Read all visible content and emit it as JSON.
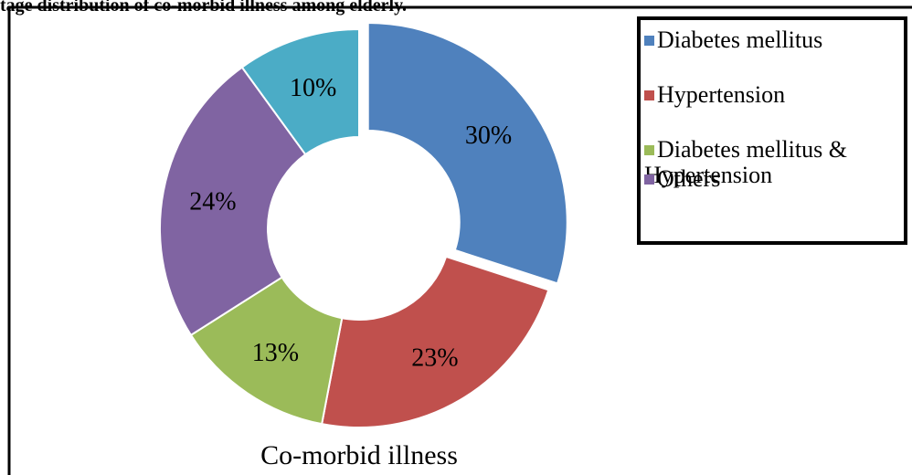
{
  "chart_data": {
    "type": "donut",
    "title": "tage distribution of co-morbid illness among elderly.",
    "subtitle": "Co-morbid illness",
    "categories": [
      "Diabetes mellitus",
      "Hypertension",
      "Diabetes mellitus & Hypertension",
      "Others",
      null
    ],
    "values": [
      30,
      23,
      13,
      24,
      10
    ],
    "value_labels": [
      "30%",
      "23%",
      "13%",
      "24%",
      "10%"
    ],
    "colors": [
      "#4f81bd",
      "#c0504d",
      "#9bbb59",
      "#8064a2",
      "#4bacc6"
    ],
    "exploded": [
      0
    ],
    "legend": "right"
  }
}
